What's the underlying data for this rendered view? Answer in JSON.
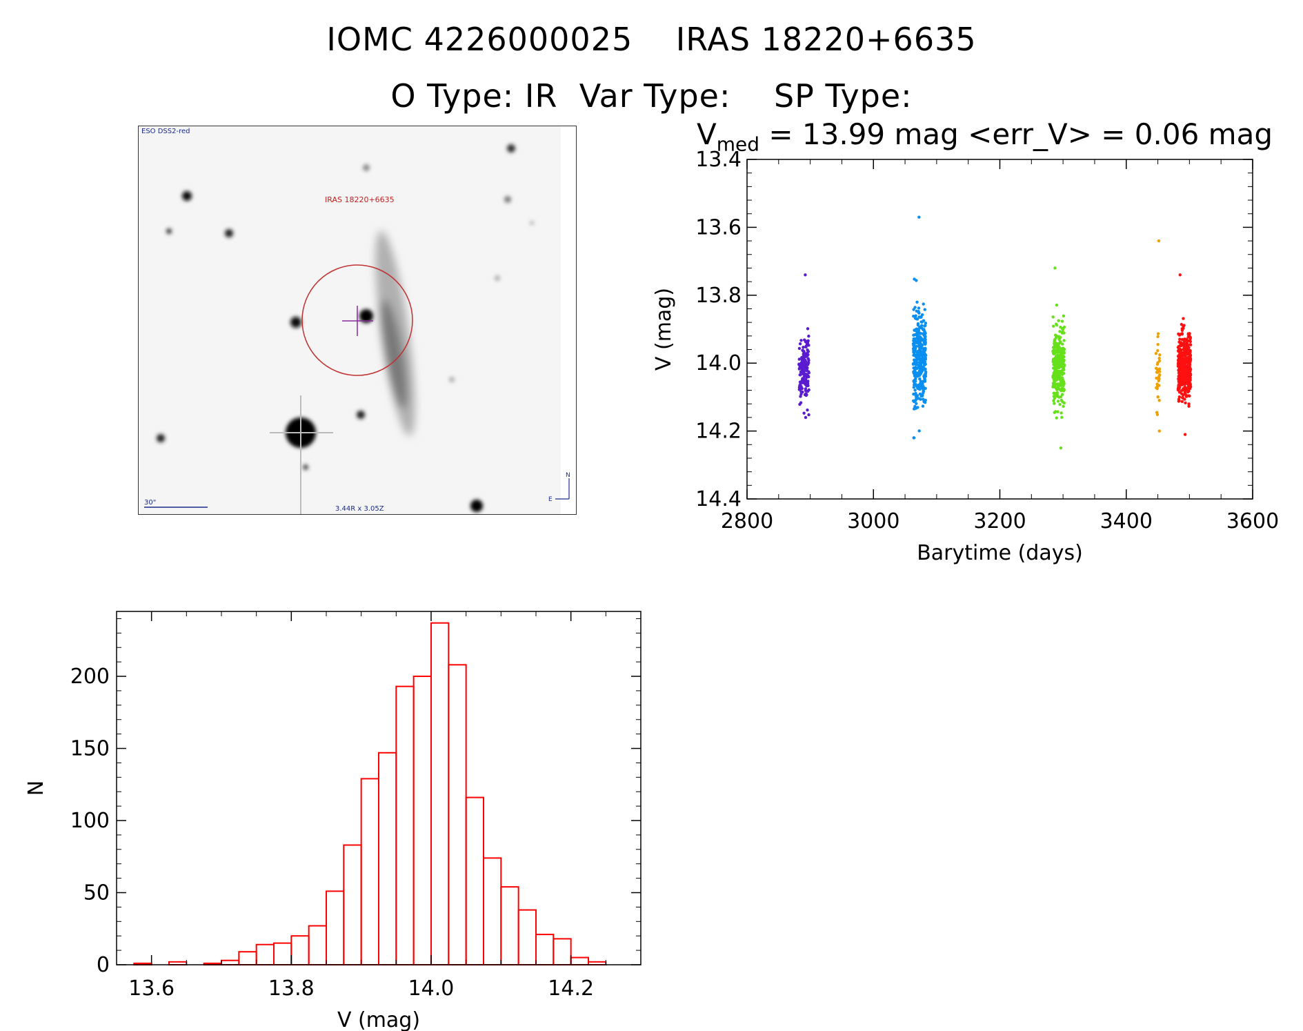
{
  "header": {
    "title": "IOMC 4226000025    IRAS 18220+6635",
    "subtitle": "O Type: IR  Var Type:    SP Type:",
    "vmed_symbol": "V",
    "vmed_sub": "med",
    "vmed_text": " = 13.99 mag <err_V> = 0.06 mag"
  },
  "sky_image": {
    "survey_label": "ESO DSS2-red",
    "target_label": "IRAS 18220+6635",
    "scale_label": "30\"",
    "size_label": "3.44R x 3.05Z",
    "north_label": "N",
    "east_label": "E"
  },
  "chart_data": [
    {
      "type": "scatter",
      "xlabel": "Barytime (days)",
      "ylabel": "V (mag)",
      "xlim": [
        2800,
        3600
      ],
      "ylim": [
        13.4,
        14.4
      ],
      "y_inverted": true,
      "xticks": [
        "2800",
        "3000",
        "3200",
        "3400",
        "3600"
      ],
      "yticks": [
        "13.4",
        "13.6",
        "13.8",
        "14.0",
        "14.2",
        "14.4"
      ],
      "grid": false,
      "series": [
        {
          "color": "#5a1bd0",
          "x_center": 2890,
          "x_spread": 8,
          "count": 160,
          "y_mean": 14.02,
          "y_sd": 0.05,
          "y_min": 13.74,
          "y_max": 14.16
        },
        {
          "color": "#0a8ff0",
          "x_center": 3073,
          "x_spread": 10,
          "count": 330,
          "y_mean": 13.99,
          "y_sd": 0.07,
          "y_min": 13.57,
          "y_max": 14.22
        },
        {
          "color": "#66e01a",
          "x_center": 3293,
          "x_spread": 9,
          "count": 300,
          "y_mean": 14.0,
          "y_sd": 0.06,
          "y_min": 13.72,
          "y_max": 14.25
        },
        {
          "color": "#f0a000",
          "x_center": 3450,
          "x_spread": 3,
          "count": 35,
          "y_mean": 14.04,
          "y_sd": 0.07,
          "y_min": 13.64,
          "y_max": 14.2
        },
        {
          "color": "#ff1010",
          "x_center": 3492,
          "x_spread": 10,
          "count": 420,
          "y_mean": 14.01,
          "y_sd": 0.05,
          "y_min": 13.74,
          "y_max": 14.21
        }
      ]
    },
    {
      "type": "bar",
      "subtype": "histogram",
      "xlabel": "V (mag)",
      "ylabel": "N",
      "xlim": [
        13.55,
        14.3
      ],
      "ylim": [
        0,
        245
      ],
      "bar_color": "#ff0000",
      "xticks": [
        "13.6",
        "13.8",
        "14.0",
        "14.2"
      ],
      "yticks": [
        "0",
        "50",
        "100",
        "150",
        "200"
      ],
      "bin_edges": [
        13.575,
        13.6,
        13.625,
        13.65,
        13.675,
        13.7,
        13.725,
        13.75,
        13.775,
        13.8,
        13.825,
        13.85,
        13.875,
        13.9,
        13.925,
        13.95,
        13.975,
        14.0,
        14.025,
        14.05,
        14.075,
        14.1,
        14.125,
        14.15,
        14.175,
        14.2,
        14.225,
        14.25
      ],
      "values": [
        1,
        0,
        2,
        0,
        1,
        3,
        9,
        14,
        15,
        20,
        27,
        51,
        83,
        129,
        147,
        193,
        200,
        237,
        208,
        116,
        74,
        54,
        38,
        21,
        18,
        5,
        2
      ]
    }
  ]
}
